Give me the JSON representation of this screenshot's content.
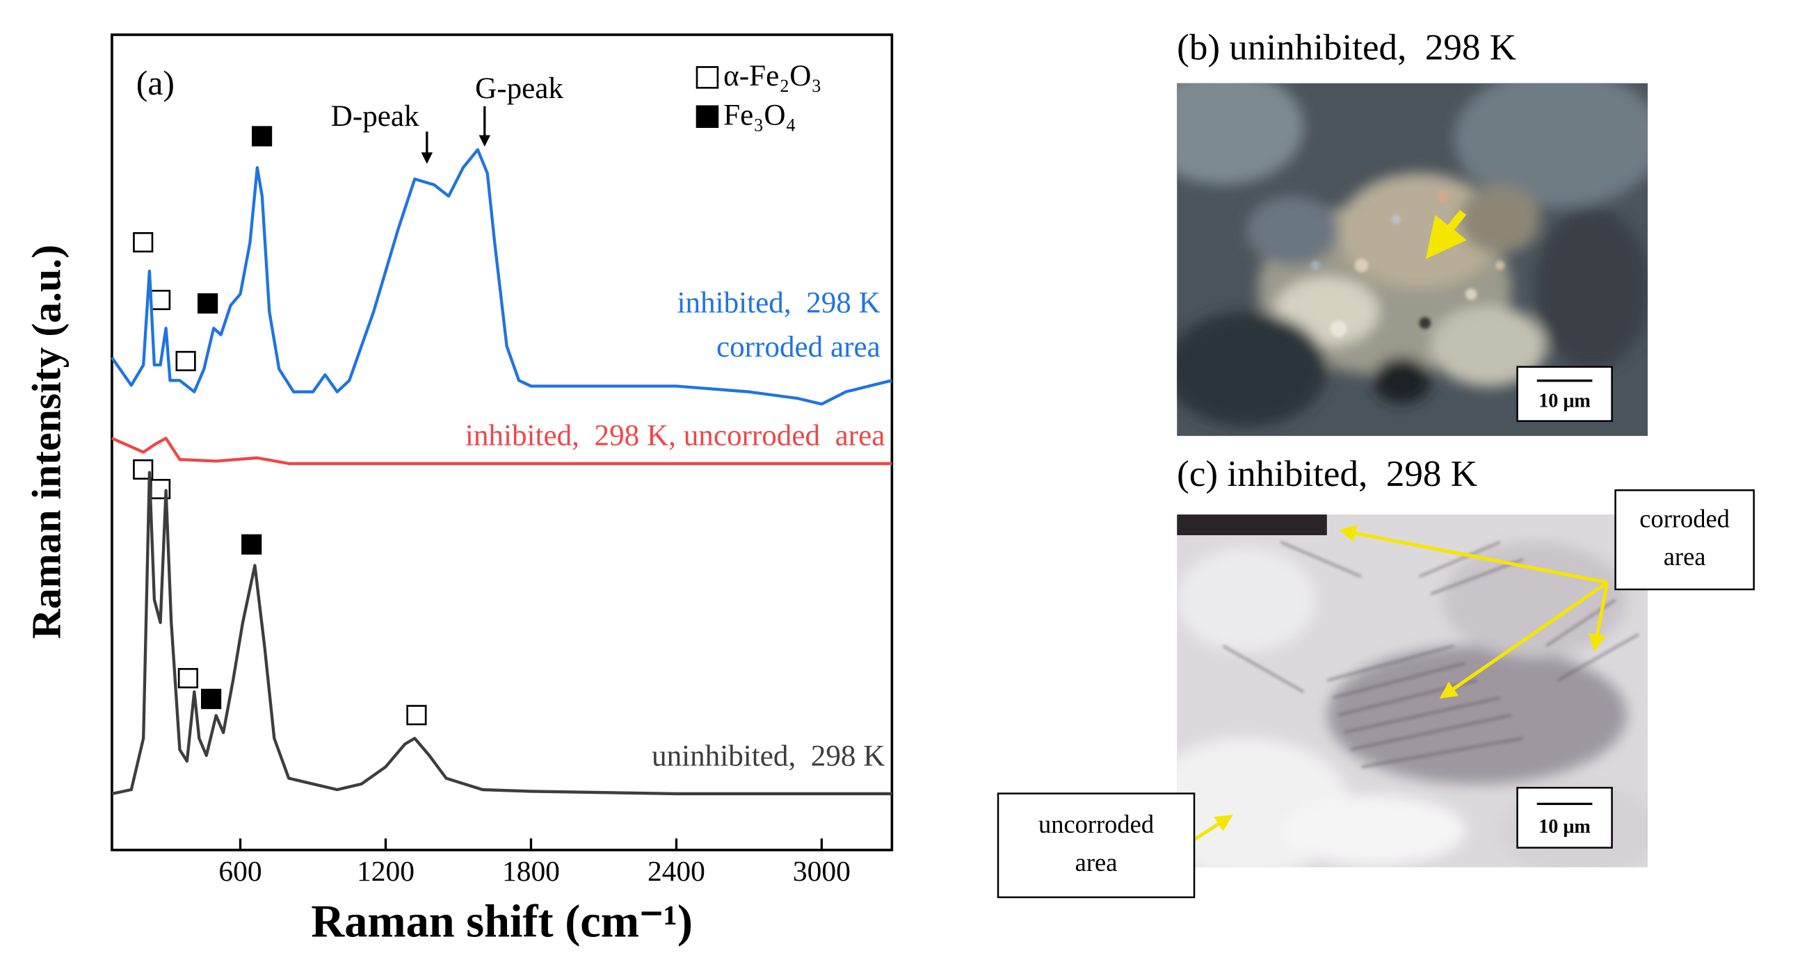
{
  "chart_data": {
    "type": "line",
    "panel_label": "(a)",
    "xlabel": "Raman shift (cm⁻¹)",
    "ylabel": "Raman intensity (a.u.)",
    "xlim": [
      70,
      3290
    ],
    "xticks": [
      600,
      1200,
      1800,
      2400,
      3000
    ],
    "ylim": [
      0,
      100
    ],
    "series": [
      {
        "labels": [
          "inhibited,  298 K",
          "corroded area"
        ],
        "color": "#1f74e0",
        "x": [
          70,
          150,
          200,
          225,
          245,
          270,
          293,
          310,
          350,
          410,
          450,
          490,
          520,
          560,
          600,
          640,
          670,
          690,
          720,
          760,
          820,
          900,
          950,
          1000,
          1050,
          1150,
          1250,
          1320,
          1400,
          1460,
          1520,
          1580,
          1620,
          1650,
          1700,
          1750,
          1800,
          2000,
          2400,
          2700,
          2900,
          3000,
          3100,
          3290
        ],
        "values": [
          60.4,
          57,
          59.5,
          71,
          59.5,
          59.5,
          64,
          57.6,
          57.6,
          56.2,
          59,
          64,
          63.2,
          66.8,
          68.2,
          74.5,
          83.7,
          80.2,
          66,
          59,
          56.2,
          56.2,
          58.3,
          56.2,
          57.6,
          66,
          76,
          82.3,
          81.6,
          80.2,
          83.7,
          85.9,
          83,
          74.5,
          61.8,
          57.6,
          56.9,
          56.9,
          56.9,
          56.2,
          55.4,
          54.7,
          56.2,
          57.6
        ]
      },
      {
        "labels": [
          "inhibited,  298 K, uncorroded  area"
        ],
        "color": "#ef4747",
        "x": [
          70,
          200,
          250,
          293,
          350,
          500,
          670,
          800,
          3290
        ],
        "values": [
          50.5,
          48.8,
          49.8,
          50.5,
          47.9,
          47.7,
          48.1,
          47.4,
          47.4
        ]
      },
      {
        "labels": [
          "uninhibited,  298 K"
        ],
        "color": "#3d3d3d",
        "x": [
          70,
          150,
          200,
          225,
          245,
          270,
          293,
          315,
          350,
          380,
          410,
          430,
          460,
          500,
          530,
          570,
          610,
          660,
          700,
          740,
          800,
          900,
          1000,
          1100,
          1200,
          1280,
          1320,
          1380,
          1450,
          1600,
          1800,
          2400,
          3290
        ],
        "values": [
          6.9,
          7.4,
          13.7,
          46.3,
          30.7,
          27.9,
          44.1,
          27.9,
          12.3,
          10.9,
          19.4,
          13.7,
          11.6,
          16.5,
          14.4,
          20.8,
          27.9,
          34.9,
          25,
          13.7,
          8.8,
          8.1,
          7.4,
          8.1,
          10.2,
          13,
          13.7,
          11.6,
          8.8,
          7.4,
          7.2,
          6.9,
          6.9
        ]
      }
    ],
    "peak_labels": [
      "D-peak",
      "G-peak"
    ],
    "legend": {
      "position": "top-right",
      "entries": [
        {
          "label": "α-Fe₂O₃",
          "fill": "none"
        },
        {
          "label": "Fe₃O₄",
          "fill": "#000000"
        }
      ]
    }
  },
  "panels": [
    {
      "title": "(b) uninhibited,  298 K",
      "scale_bar": "10 μm"
    },
    {
      "title": "(c) inhibited,  298 K",
      "scale_bar": "10 μm",
      "callouts": [
        {
          "lines": [
            "corroded",
            "area"
          ]
        },
        {
          "lines": [
            "uncorroded",
            "area"
          ]
        }
      ]
    }
  ]
}
